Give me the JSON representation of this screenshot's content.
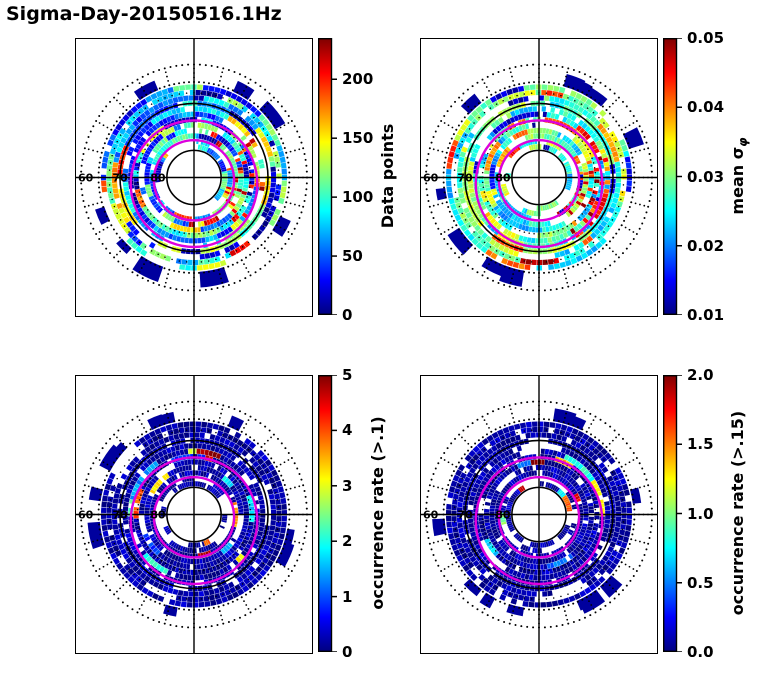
{
  "title": "Sigma-Day-20150516.1Hz",
  "figure_bg": "#ffffff",
  "chart_data": [
    {
      "id": "data_points",
      "type": "heatmap",
      "projection": "polar-dial",
      "data_summary": "Polar map of data-point counts; dense mosaic of mostly blue/cyan/green bins (50-150) with scattered yellow/orange/red bins and a high-count patch on the right (dawn) side between the 70 and 80 deg rings.",
      "colorbar": {
        "label": "Data points",
        "sub_label": "",
        "tick_labels": [
          "0",
          "50",
          "100",
          "150",
          "200"
        ],
        "tick_values": [
          0,
          50,
          100,
          150,
          200
        ],
        "vmin": 0,
        "vmax": 235,
        "colormap": "jet"
      },
      "grid": {
        "lat_ring_labels": [
          "60",
          "70",
          "80"
        ],
        "solid_rings_r": [
          0.655,
          0.24
        ],
        "dotted_rings_r": [
          1.0,
          0.845,
          0.75,
          0.5
        ],
        "spoke_step_deg": 15,
        "spoke_r": [
          0.845,
          1.0
        ],
        "oval_color": "#dd00dd",
        "ovals": [
          {
            "r": 0.355,
            "dy": 0.025
          },
          {
            "r": 0.56,
            "dy": 0.055
          }
        ]
      },
      "cells": {
        "seed": 7,
        "style": "dense",
        "rings": 12,
        "r_start": 0.25,
        "dr": 0.048,
        "cell_deg": 3.75,
        "fill_prob": 0.87,
        "low_frac": 0.18,
        "value_range": [
          0.12,
          0.66
        ],
        "hotspot": {
          "deg": [
            -35,
            45
          ],
          "r": [
            0.28,
            0.62
          ],
          "prob": 0.3
        },
        "stubs": 9
      }
    },
    {
      "id": "mean_sigma_phi",
      "type": "heatmap",
      "projection": "polar-dial",
      "data_summary": "Polar map of mean sigma-phi; mostly cyan/green bins (0.02-0.03) with dark-red patches (>0.04) concentrated on the right side inside the magenta auroral oval.",
      "colorbar": {
        "label": "mean σ",
        "sub_label": "φ",
        "tick_labels": [
          "0.01",
          "0.02",
          "0.03",
          "0.04",
          "0.05"
        ],
        "tick_values": [
          0.01,
          0.02,
          0.03,
          0.04,
          0.05
        ],
        "vmin": 0.01,
        "vmax": 0.05,
        "colormap": "jet"
      },
      "grid": {
        "lat_ring_labels": [
          "60",
          "70",
          "80"
        ],
        "solid_rings_r": [
          0.655,
          0.24
        ],
        "dotted_rings_r": [
          1.0,
          0.845,
          0.75,
          0.5
        ],
        "spoke_step_deg": 15,
        "spoke_r": [
          0.845,
          1.0
        ],
        "oval_color": "#dd00dd",
        "ovals": [
          {
            "r": 0.355,
            "dy": 0.025
          },
          {
            "r": 0.56,
            "dy": 0.055
          }
        ]
      },
      "cells": {
        "seed": 13,
        "style": "dense",
        "rings": 12,
        "r_start": 0.25,
        "dr": 0.048,
        "cell_deg": 3.75,
        "fill_prob": 0.88,
        "low_frac": 0.08,
        "value_range": [
          0.28,
          0.62
        ],
        "hotspot": {
          "deg": [
            -20,
            60
          ],
          "r": [
            0.3,
            0.62
          ],
          "prob": 0.45
        },
        "stubs": 9
      }
    },
    {
      "id": "occurrence_rate_gt_0p1",
      "type": "heatmap",
      "projection": "polar-dial",
      "data_summary": "Occurrence rate of sigma-phi > .1; almost entirely dark blue (near 0) with sparse cyan/green/red arcs (1-5) clustered between the 70 and 80 deg rings, mainly on the right and lower side near the magenta oval.",
      "colorbar": {
        "label": "occurrence rate (>.1)",
        "sub_label": "",
        "tick_labels": [
          "0",
          "1",
          "2",
          "3",
          "4",
          "5"
        ],
        "tick_values": [
          0,
          1,
          2,
          3,
          4,
          5
        ],
        "vmin": 0,
        "vmax": 5,
        "colormap": "jet"
      },
      "grid": {
        "lat_ring_labels": [
          "60",
          "70",
          "80"
        ],
        "solid_rings_r": [
          0.655,
          0.24
        ],
        "dotted_rings_r": [
          1.0,
          0.845,
          0.75,
          0.5
        ],
        "spoke_step_deg": 15,
        "spoke_r": [
          0.845,
          1.0
        ],
        "oval_color": "#dd00dd",
        "ovals": [
          {
            "r": 0.355,
            "dy": 0.025
          },
          {
            "r": 0.56,
            "dy": 0.055
          }
        ]
      },
      "cells": {
        "seed": 21,
        "style": "sparse",
        "rings": 12,
        "r_start": 0.25,
        "dr": 0.048,
        "cell_deg": 3.75,
        "fill_prob": 0.93,
        "colored_r": [
          0.26,
          0.6
        ],
        "colored_prob": 0.2,
        "stubs": 10
      }
    },
    {
      "id": "occurrence_rate_gt_0p15",
      "type": "heatmap",
      "projection": "polar-dial",
      "data_summary": "Occurrence rate of sigma-phi > .15; almost entirely dark blue (near 0) with fewer sparse colored arcs (0.5-2.0) in the inner auroral-oval region, mostly right/lower side.",
      "colorbar": {
        "label": "occurrence rate (>.15)",
        "sub_label": "",
        "tick_labels": [
          "0.0",
          "0.5",
          "1.0",
          "1.5",
          "2.0"
        ],
        "tick_values": [
          0,
          0.5,
          1.0,
          1.5,
          2.0
        ],
        "vmin": 0,
        "vmax": 2,
        "colormap": "jet"
      },
      "grid": {
        "lat_ring_labels": [
          "60",
          "70",
          "80"
        ],
        "solid_rings_r": [
          0.655,
          0.24
        ],
        "dotted_rings_r": [
          1.0,
          0.845,
          0.75,
          0.5
        ],
        "spoke_step_deg": 15,
        "spoke_r": [
          0.845,
          1.0
        ],
        "oval_color": "#dd00dd",
        "ovals": [
          {
            "r": 0.355,
            "dy": 0.025
          },
          {
            "r": 0.56,
            "dy": 0.055
          }
        ]
      },
      "cells": {
        "seed": 29,
        "style": "sparse",
        "rings": 12,
        "r_start": 0.25,
        "dr": 0.048,
        "cell_deg": 3.75,
        "fill_prob": 0.93,
        "colored_r": [
          0.26,
          0.58
        ],
        "colored_prob": 0.16,
        "stubs": 10
      }
    }
  ]
}
